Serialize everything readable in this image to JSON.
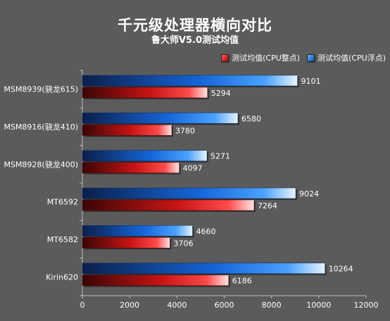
{
  "chart_data": {
    "type": "bar",
    "orientation": "horizontal",
    "title": "千元级处理器横向对比",
    "subtitle": "鲁大师V5.0测试均值",
    "categories": [
      "MSM8939(骁龙615)",
      "MSM8916(骁龙410)",
      "MSM8928(骁龙400)",
      "MT6592",
      "MT6582",
      "Kirin620"
    ],
    "series": [
      {
        "name": "测试均值(CPU浮点)",
        "color": "#1f7fe8",
        "values": [
          9101,
          6580,
          5271,
          9024,
          4660,
          10264
        ]
      },
      {
        "name": "测试均值(CPU整点)",
        "color": "#e01818",
        "values": [
          5294,
          3780,
          4097,
          7264,
          3706,
          6186
        ]
      }
    ],
    "xlim": [
      0,
      12000
    ],
    "xticks": [
      0,
      2000,
      4000,
      6000,
      8000,
      10000,
      12000
    ],
    "legend_position": "top-right",
    "grid": false
  }
}
